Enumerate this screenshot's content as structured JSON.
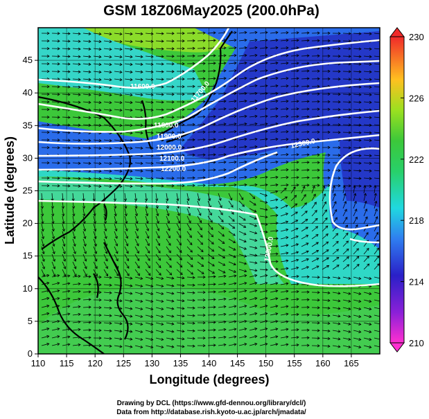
{
  "title": "GSM 18Z06May2025 (200.0hPa)",
  "xlabel": "Longitude (degrees)",
  "ylabel": "Latitude  (degrees)",
  "x_ticks": [
    "110",
    "115",
    "120",
    "125",
    "130",
    "135",
    "140",
    "145",
    "150",
    "155",
    "160",
    "165"
  ],
  "y_ticks": [
    "0",
    "5",
    "10",
    "15",
    "20",
    "25",
    "30",
    "35",
    "40",
    "45"
  ],
  "colorbar": {
    "ticks": [
      "210",
      "214",
      "218",
      "222",
      "226",
      "230"
    ],
    "min": 210,
    "max": 230
  },
  "contour_labels": [
    "11600.0",
    "11700.0",
    "11800.0",
    "11900.0",
    "12000.0",
    "12100.0",
    "12200.0",
    "12300.0",
    "12300.0"
  ],
  "credits": {
    "line1": "Drawing by DCL (https://www.gfd-dennou.org/library/dcl/)",
    "line2": "Data from http://database.rish.kyoto-u.ac.jp/arch/jmadata/"
  },
  "colors": {
    "warm_green": "#3fd23a",
    "cyan": "#3ddcd2",
    "blue": "#2a5fe6",
    "deep_blue": "#2438c8",
    "contour": "#ffffff",
    "vector": "#000000",
    "coast": "#000000"
  }
}
